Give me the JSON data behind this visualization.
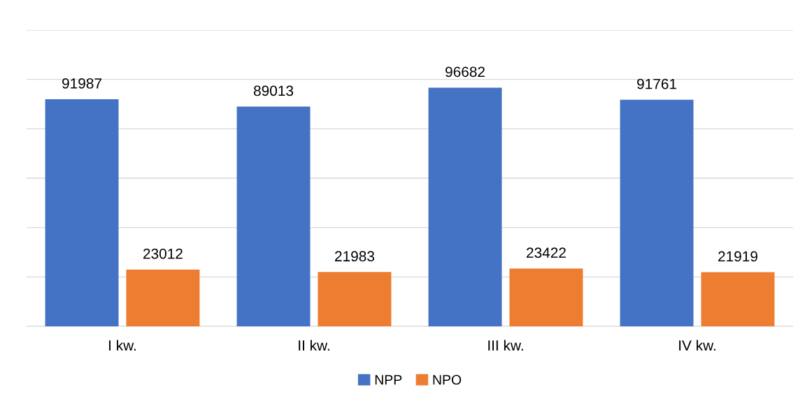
{
  "chart_data": {
    "type": "bar",
    "categories": [
      "I kw.",
      "II kw.",
      "III kw.",
      "IV kw."
    ],
    "series": [
      {
        "name": "NPP",
        "color": "#4472c4",
        "values": [
          91987,
          89013,
          96682,
          91761
        ]
      },
      {
        "name": "NPO",
        "color": "#ed7d31",
        "values": [
          23012,
          21983,
          23422,
          21919
        ]
      }
    ],
    "ylim": [
      0,
      120000
    ],
    "yticks": [
      {
        "value": 0,
        "label": null
      },
      {
        "value": 20000,
        "label": null
      },
      {
        "value": 40000,
        "label": null
      },
      {
        "value": 60000,
        "label": null
      },
      {
        "value": 80000,
        "label": null
      },
      {
        "value": 100000,
        "label": null
      },
      {
        "value": 120000,
        "label": null
      }
    ],
    "tick_labels": "x",
    "grid": "y",
    "legend": "bottom",
    "data_labels": true
  }
}
